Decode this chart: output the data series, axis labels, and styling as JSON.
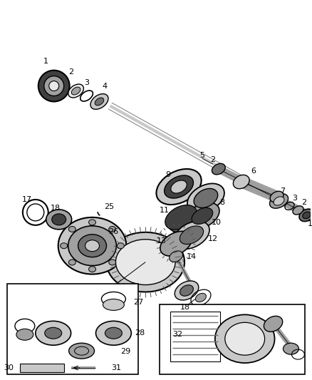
{
  "bg_color": "#ffffff",
  "lc": "#000000",
  "gray1": "#c8c8c8",
  "gray2": "#a0a0a0",
  "gray3": "#707070",
  "gray4": "#404040",
  "gray5": "#e8e8e8",
  "fig_width": 4.38,
  "fig_height": 5.33,
  "dpi": 100
}
